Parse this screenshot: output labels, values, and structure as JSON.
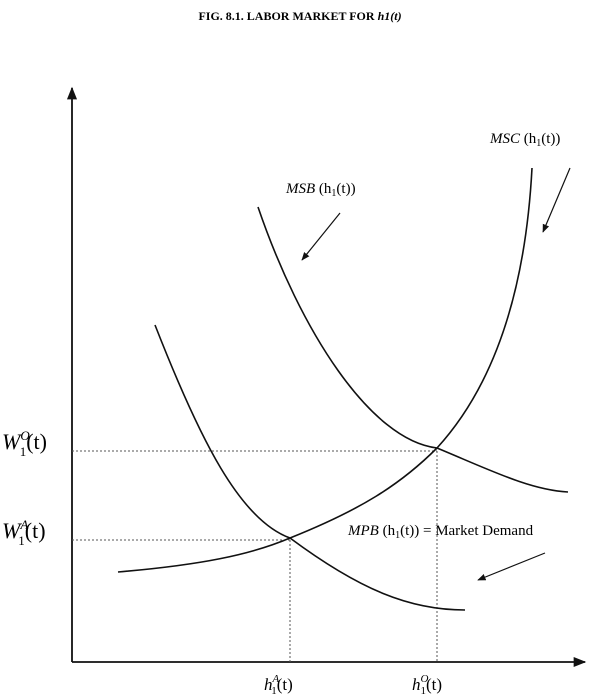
{
  "title": {
    "main": "FIG. 8.1. LABOR MARKET FOR ",
    "var": "h1(t)"
  },
  "curves": {
    "msc": {
      "name": "MSC",
      "open": "(h",
      "sub": "1",
      "close": "(t))"
    },
    "msb": {
      "name": "MSB",
      "open": "(h",
      "sub": "1",
      "close": "(t))"
    },
    "mpb": {
      "name": "MPB",
      "open": "(h",
      "sub": "1",
      "close": "(t)) = Market Demand"
    }
  },
  "y_labels": {
    "optimal": {
      "base": "W",
      "sub": "1",
      "sup": "O",
      "arg": "(t)"
    },
    "actual": {
      "base": "W",
      "sub": "1",
      "sup": "A",
      "arg": "(t)"
    }
  },
  "x_labels": {
    "actual": {
      "base": "h",
      "sub": "1",
      "sup": "A",
      "arg": "(t)"
    },
    "optimal": {
      "base": "h",
      "sub": "1",
      "sup": "O",
      "arg": "(t)"
    }
  }
}
